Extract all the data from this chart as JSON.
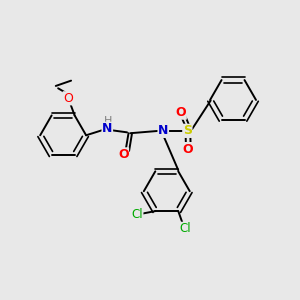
{
  "background_color": "#e8e8e8",
  "bond_color": "#000000",
  "atom_colors": {
    "O": "#ff0000",
    "N": "#0000cc",
    "H": "#808080",
    "Cl": "#00aa00",
    "S": "#cccc00",
    "C": "#000000"
  },
  "figsize": [
    3.0,
    3.0
  ],
  "dpi": 100,
  "xlim": [
    0,
    10
  ],
  "ylim": [
    0,
    10
  ]
}
